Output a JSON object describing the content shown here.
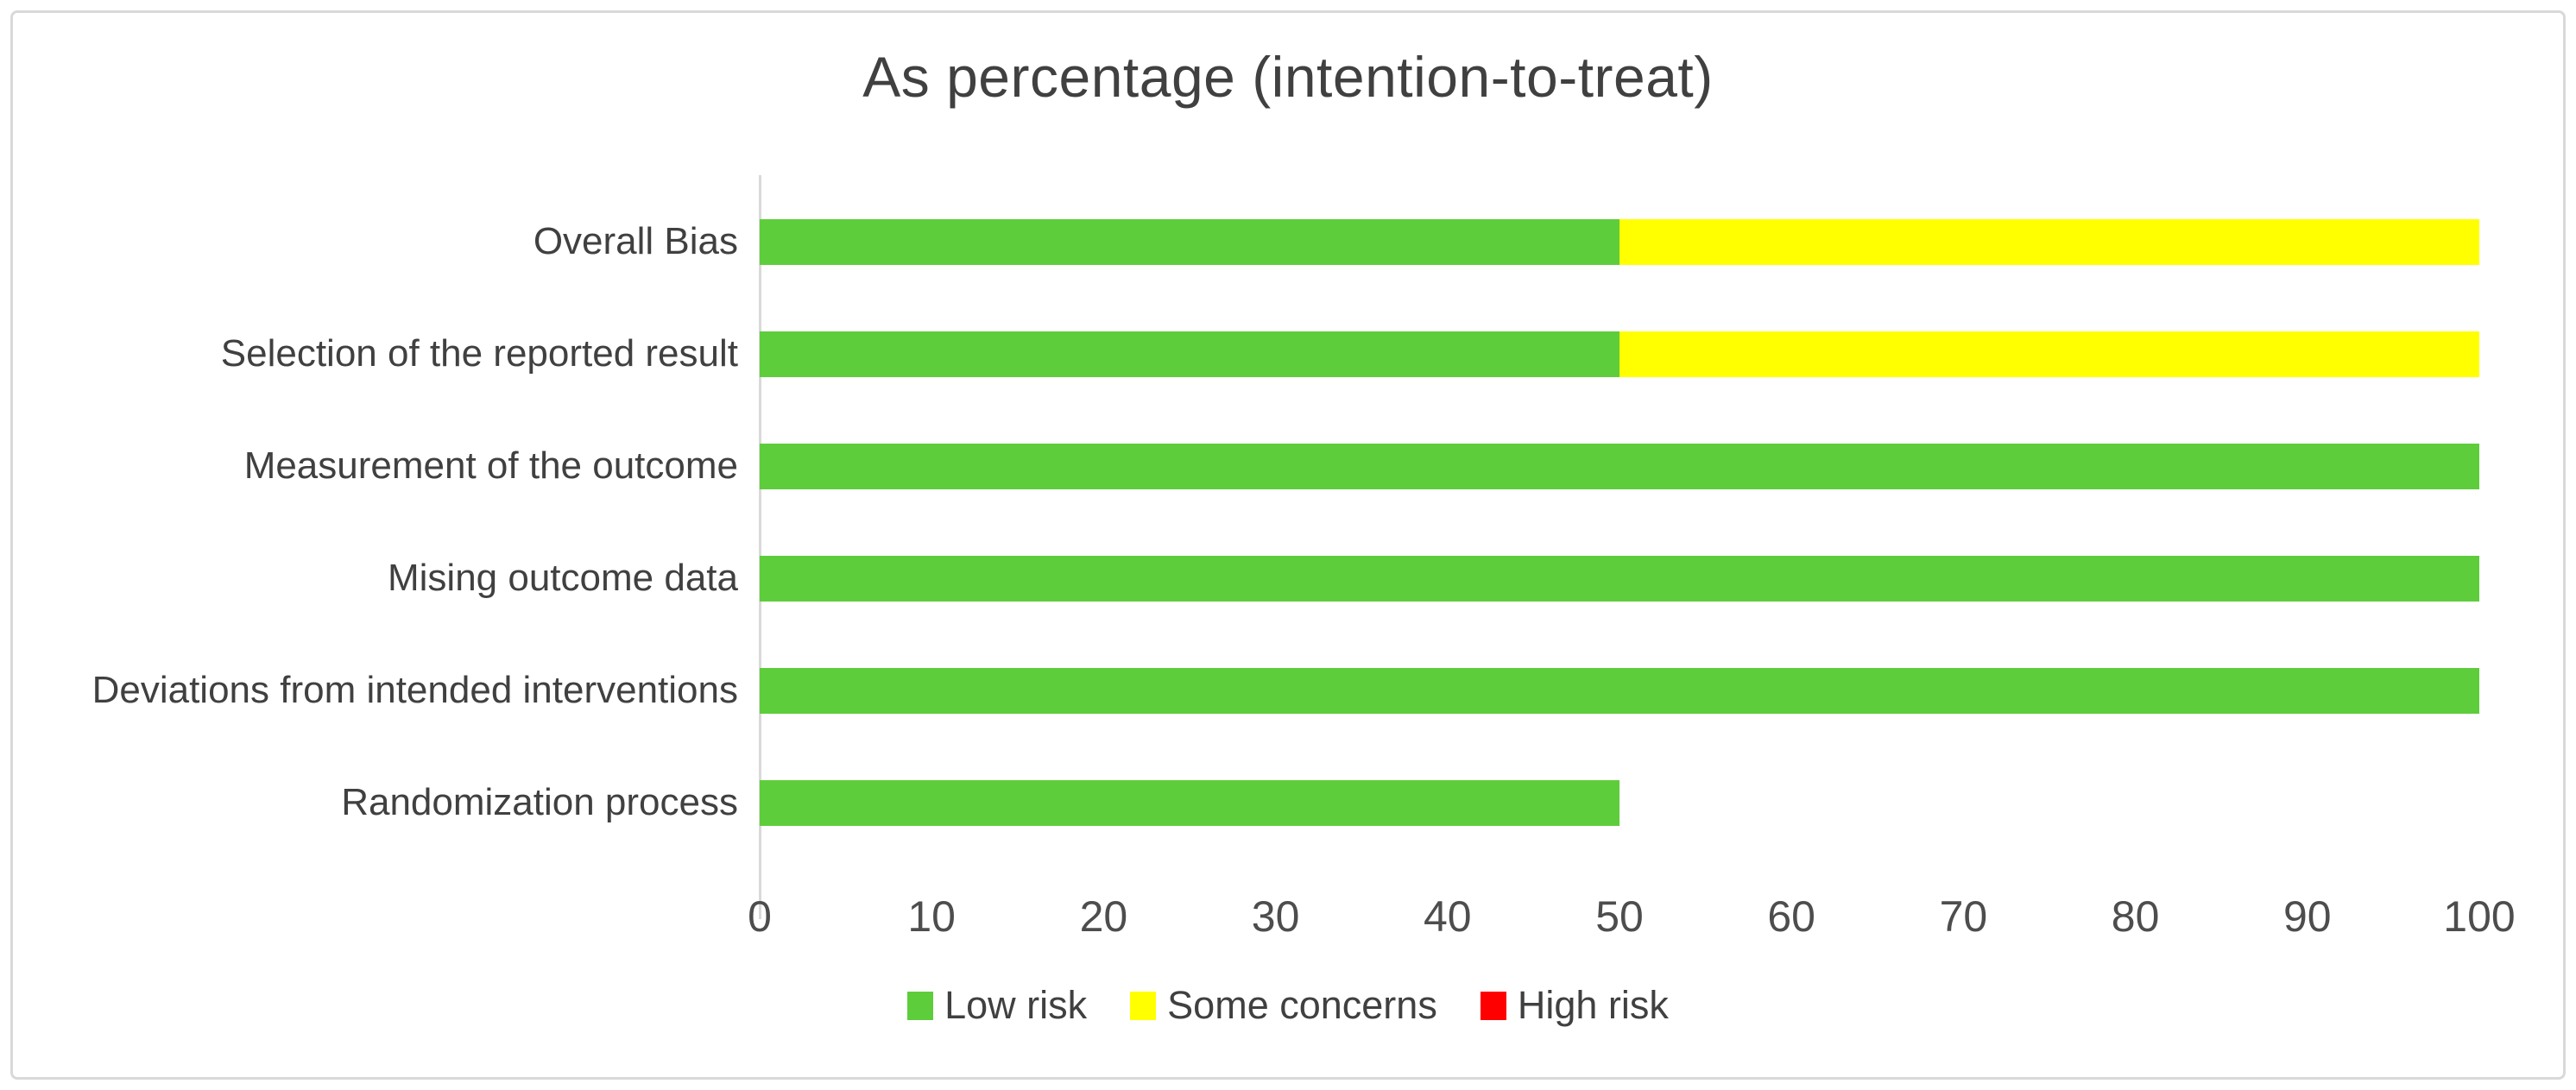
{
  "chart_data": {
    "type": "bar",
    "orientation": "horizontal",
    "stacked": true,
    "title": "As percentage (intention-to-treat)",
    "categories": [
      "Overall Bias",
      "Selection of the reported result",
      "Measurement of the outcome",
      "Mising outcome data",
      "Deviations from intended interventions",
      "Randomization process"
    ],
    "series": [
      {
        "name": "Low risk",
        "color": "#5ecd3c",
        "values": [
          50,
          50,
          100,
          100,
          100,
          50
        ]
      },
      {
        "name": "Some concerns",
        "color": "#ffff00",
        "values": [
          50,
          50,
          0,
          0,
          0,
          0
        ]
      },
      {
        "name": "High risk",
        "color": "#ff0000",
        "values": [
          0,
          0,
          0,
          0,
          0,
          0
        ]
      }
    ],
    "x_ticks": [
      0,
      10,
      20,
      30,
      40,
      50,
      60,
      70,
      80,
      90,
      100
    ],
    "xlim": [
      0,
      100
    ],
    "grid": false,
    "legend_position": "bottom",
    "axis_line_color": "#d9d9d9",
    "frame_border_color": "#d9d9d9",
    "text_color": "#404040",
    "background": "#ffffff"
  }
}
